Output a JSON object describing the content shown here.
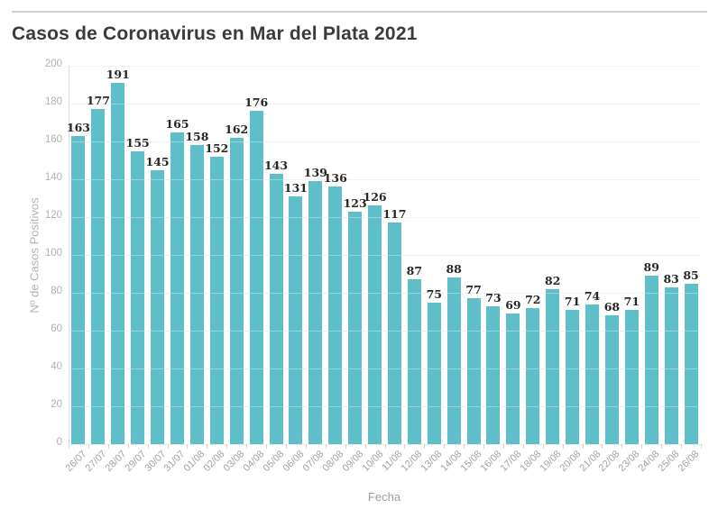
{
  "page_title": "Casos de Coronavirus en Mar del Plata 2021",
  "chart_data": {
    "type": "bar",
    "title": "Casos de Coronavirus en Mar del Plata 2021",
    "xlabel": "Fecha",
    "ylabel": "Nº de Casos Positivos",
    "ylim": [
      0,
      200
    ],
    "yticks": [
      0,
      20,
      40,
      60,
      80,
      100,
      120,
      140,
      160,
      180,
      200
    ],
    "grid": true,
    "legend": false,
    "categories": [
      "26/07",
      "27/07",
      "28/07",
      "29/07",
      "30/07",
      "31/07",
      "01/08",
      "02/08",
      "03/08",
      "04/08",
      "05/08",
      "06/08",
      "07/08",
      "08/08",
      "09/08",
      "10/08",
      "11/08",
      "12/08",
      "13/08",
      "14/08",
      "15/08",
      "16/08",
      "17/08",
      "18/08",
      "19/08",
      "20/08",
      "21/08",
      "22/08",
      "23/08",
      "24/08",
      "25/08",
      "26/08"
    ],
    "values": [
      163,
      177,
      191,
      155,
      145,
      165,
      158,
      152,
      162,
      176,
      143,
      131,
      139,
      136,
      123,
      126,
      117,
      87,
      75,
      88,
      77,
      73,
      69,
      72,
      82,
      71,
      74,
      68,
      71,
      89,
      83,
      85
    ]
  },
  "colors": {
    "bar": "#5fbfc9",
    "title_text": "#3b3b3b",
    "axis_text": "#b0b0b0",
    "date_text": "#a3a3a3",
    "value_text": "#262626",
    "gridline": "#eaeaea",
    "axis_line": "#dcdcdc",
    "top_rule": "#cfcfcf",
    "background": "#ffffff"
  }
}
